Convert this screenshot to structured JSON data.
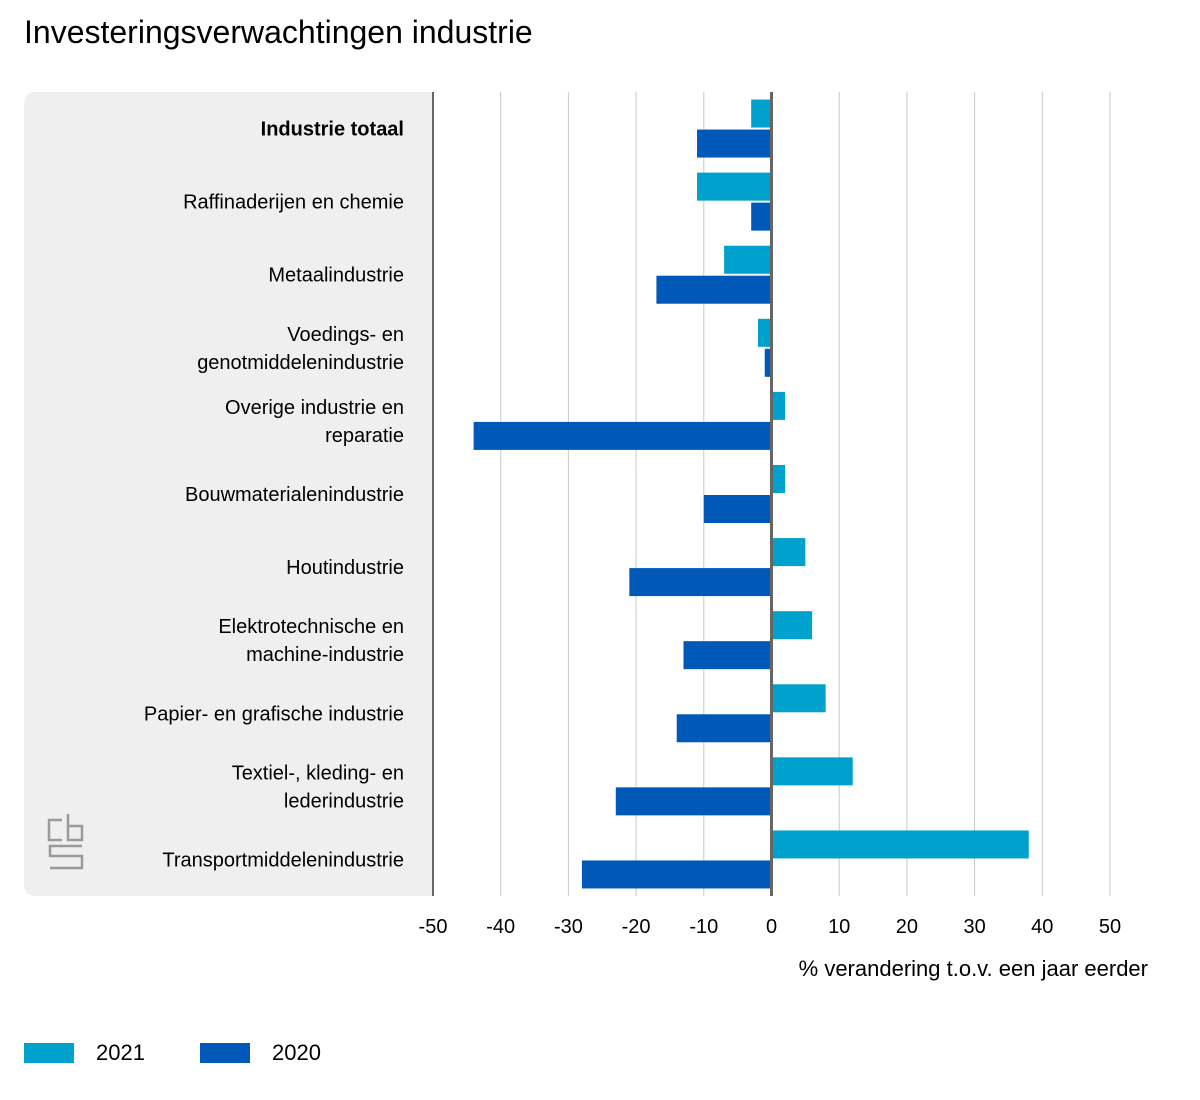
{
  "title": "Investeringsverwachtingen industrie",
  "colors": {
    "2021": "#00a1cd",
    "2020": "#0058b8",
    "panel": "#efefef",
    "axis": "#666666",
    "grid": "#c8c8c8"
  },
  "chart_data": {
    "type": "bar",
    "orientation": "horizontal",
    "title": "Investeringsverwachtingen industrie",
    "xlabel": "% verandering t.o.v. een jaar eerder",
    "ylabel": "",
    "xlim": [
      -50,
      50
    ],
    "xticks": [
      -50,
      -40,
      -30,
      -20,
      -10,
      0,
      10,
      20,
      30,
      40,
      50
    ],
    "grid": true,
    "legend": "bottom-left",
    "categories": [
      [
        "Industrie totaal"
      ],
      [
        "Raffinaderijen en chemie"
      ],
      [
        "Metaalindustrie"
      ],
      [
        "Voedings- en",
        "genotmiddelenindustrie"
      ],
      [
        "Overige industrie en",
        "reparatie"
      ],
      [
        "Bouwmaterialenindustrie"
      ],
      [
        "Houtindustrie"
      ],
      [
        "Elektrotechnische en",
        "machine-industrie"
      ],
      [
        "Papier- en grafische industrie"
      ],
      [
        "Textiel-, kleding- en",
        "lederindustrie"
      ],
      [
        "Transportmiddelenindustrie"
      ]
    ],
    "bold_categories": [
      0
    ],
    "series": [
      {
        "name": "2021",
        "values": [
          -3,
          -11,
          -7,
          -2,
          2,
          2,
          5,
          6,
          8,
          12,
          38
        ]
      },
      {
        "name": "2020",
        "values": [
          -11,
          -3,
          -17,
          -1,
          -44,
          -10,
          -21,
          -13,
          -14,
          -23,
          -28
        ]
      }
    ]
  }
}
